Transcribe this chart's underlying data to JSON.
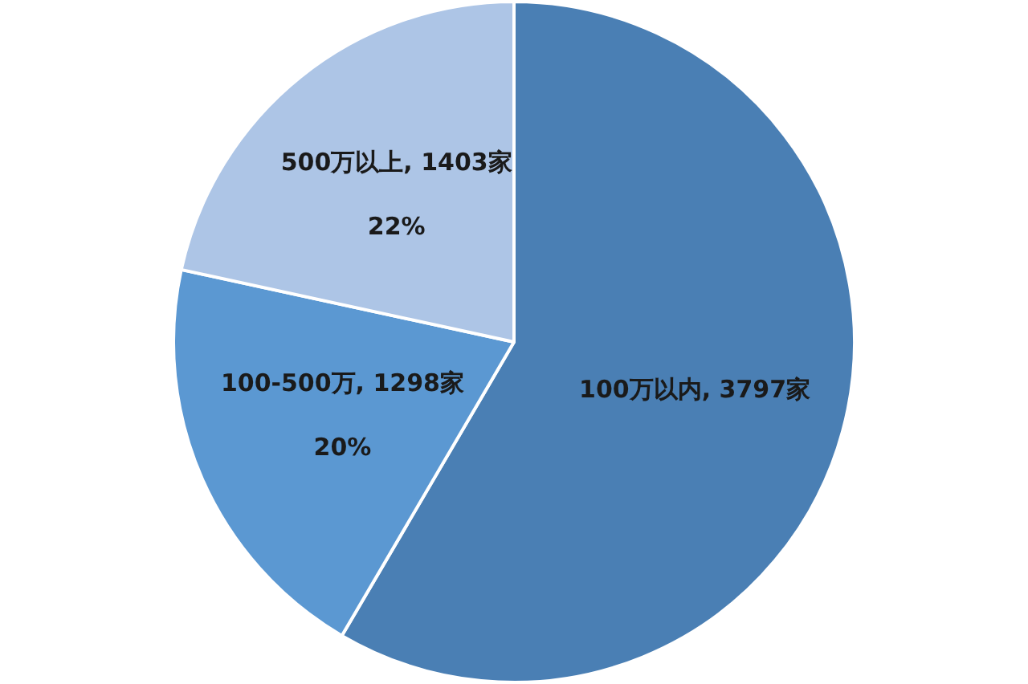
{
  "chart_data": {
    "type": "pie",
    "categories": [
      "100万以内",
      "100-500万",
      "500万以上"
    ],
    "values": [
      3797,
      1298,
      1403
    ],
    "colors": [
      "#4a7fb4",
      "#5b98d2",
      "#adc5e6"
    ],
    "value_labels": [
      ", 3797家",
      ", 1298家\n\n20%",
      ", 1403家\n\n22%"
    ],
    "legend": false
  }
}
